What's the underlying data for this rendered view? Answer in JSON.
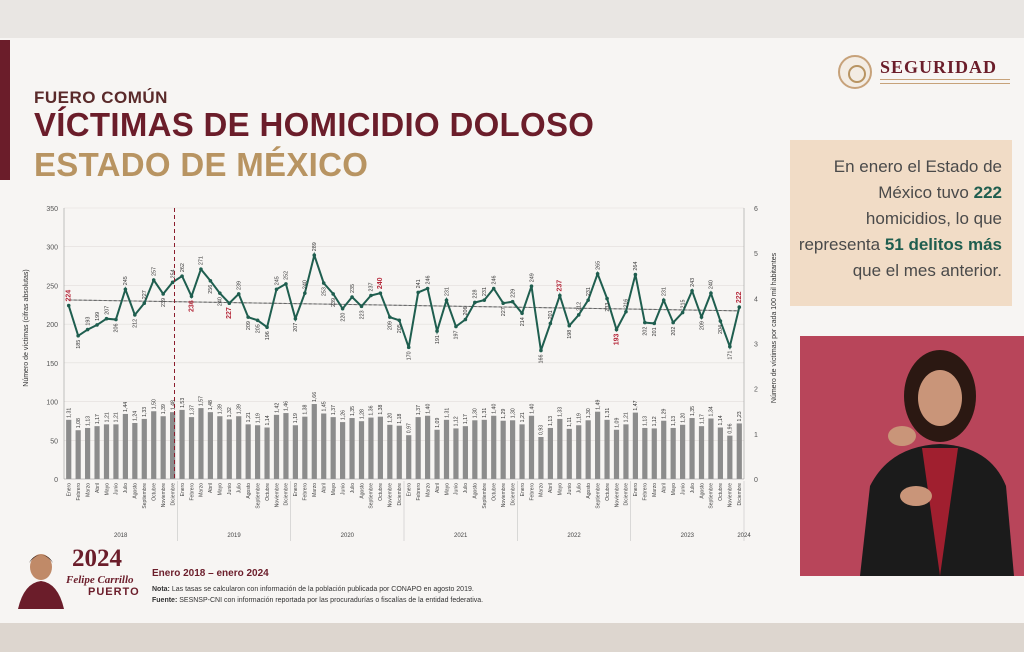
{
  "header": {
    "kicker": "FUERO COMÚN",
    "title_line1": "VÍCTIMAS DE HOMICIDIO DOLOSO",
    "title_line2": "ESTADO DE MÉXICO"
  },
  "logo": {
    "text": "SEGURIDAD"
  },
  "callout": {
    "part1": "En enero el Estado de México tuvo ",
    "count": "222",
    "part2": " homicidios, lo que representa ",
    "delta": "51",
    "part3": " delitos más",
    "part4": " que el mes anterior."
  },
  "footer": {
    "logo_year": "2024",
    "logo_name": "Felipe Carrillo",
    "logo_place": "PUERTO",
    "period": "Enero 2018 – enero 2024",
    "note_label": "Nota:",
    "note_text": " Las tasas se calcularon con información de la población publicada por CONAPO en agosto 2019.",
    "source_label": "Fuente:",
    "source_text": " SESNSP-CNI con información reportada por las procuradurías o fiscalías de la entidad federativa."
  },
  "colors": {
    "line": "#1f5e4f",
    "bar": "#8c8c8c",
    "highlight": "#b5283a",
    "trend": "#9a9a9a",
    "divider": "#8b1c2c"
  },
  "chart_data": {
    "type": "line",
    "ylabel_left": "Número de víctimas (cifras absolutas)",
    "ylabel_right": "Número de víctimas por cada 100 mil habitantes",
    "ylim_left": [
      0,
      350
    ],
    "ylim_right": [
      0,
      6
    ],
    "yticks_left": [
      "0",
      "50",
      "100",
      "150",
      "200",
      "250",
      "300",
      "350"
    ],
    "yticks_right": [
      "0",
      "1",
      "2",
      "3",
      "4",
      "5",
      "6"
    ],
    "years": [
      "2018",
      "2019",
      "2020",
      "2021",
      "2022",
      "2023",
      "2024"
    ],
    "month_names": [
      "Enero",
      "Febrero",
      "Marzo",
      "Abril",
      "Mayo",
      "Junio",
      "Julio",
      "Agosto",
      "Septiembre",
      "Octubre",
      "Noviembre",
      "Diciembre"
    ],
    "highlight_indices": [
      0,
      13,
      17,
      33,
      52,
      58,
      71,
      72
    ],
    "series": [
      {
        "name": "víctimas",
        "values": [
          224,
          185,
          193,
          199,
          207,
          206,
          245,
          212,
          227,
          257,
          239,
          254,
          262,
          236,
          271,
          256,
          240,
          227,
          239,
          209,
          205,
          196,
          245,
          252,
          207,
          240,
          289,
          253,
          239,
          220,
          235,
          223,
          237,
          240,
          209,
          205,
          170,
          241,
          246,
          191,
          231,
          197,
          206,
          228,
          231,
          246,
          227,
          229,
          214,
          249,
          166,
          201,
          237,
          198,
          212,
          231,
          265,
          233,
          193,
          216,
          264,
          202,
          201,
          231,
          202,
          215,
          243,
          209,
          240,
          204,
          171,
          222
        ]
      },
      {
        "name": "tasa",
        "values": [
          1.31,
          1.08,
          1.13,
          1.17,
          1.21,
          1.21,
          1.44,
          1.24,
          1.33,
          1.5,
          1.39,
          1.48,
          1.53,
          1.37,
          1.57,
          1.48,
          1.39,
          1.32,
          1.39,
          1.21,
          1.19,
          1.14,
          1.42,
          1.46,
          1.19,
          1.38,
          1.66,
          1.45,
          1.37,
          1.26,
          1.35,
          1.28,
          1.36,
          1.38,
          1.2,
          1.18,
          0.97,
          1.37,
          1.4,
          1.09,
          1.31,
          1.12,
          1.17,
          1.3,
          1.31,
          1.4,
          1.29,
          1.3,
          1.21,
          1.4,
          0.93,
          1.13,
          1.33,
          1.11,
          1.19,
          1.3,
          1.49,
          1.31,
          1.09,
          1.21,
          1.47,
          1.13,
          1.12,
          1.29,
          1.13,
          1.2,
          1.35,
          1.17,
          1.34,
          1.14,
          0.96,
          1.23
        ]
      }
    ]
  }
}
